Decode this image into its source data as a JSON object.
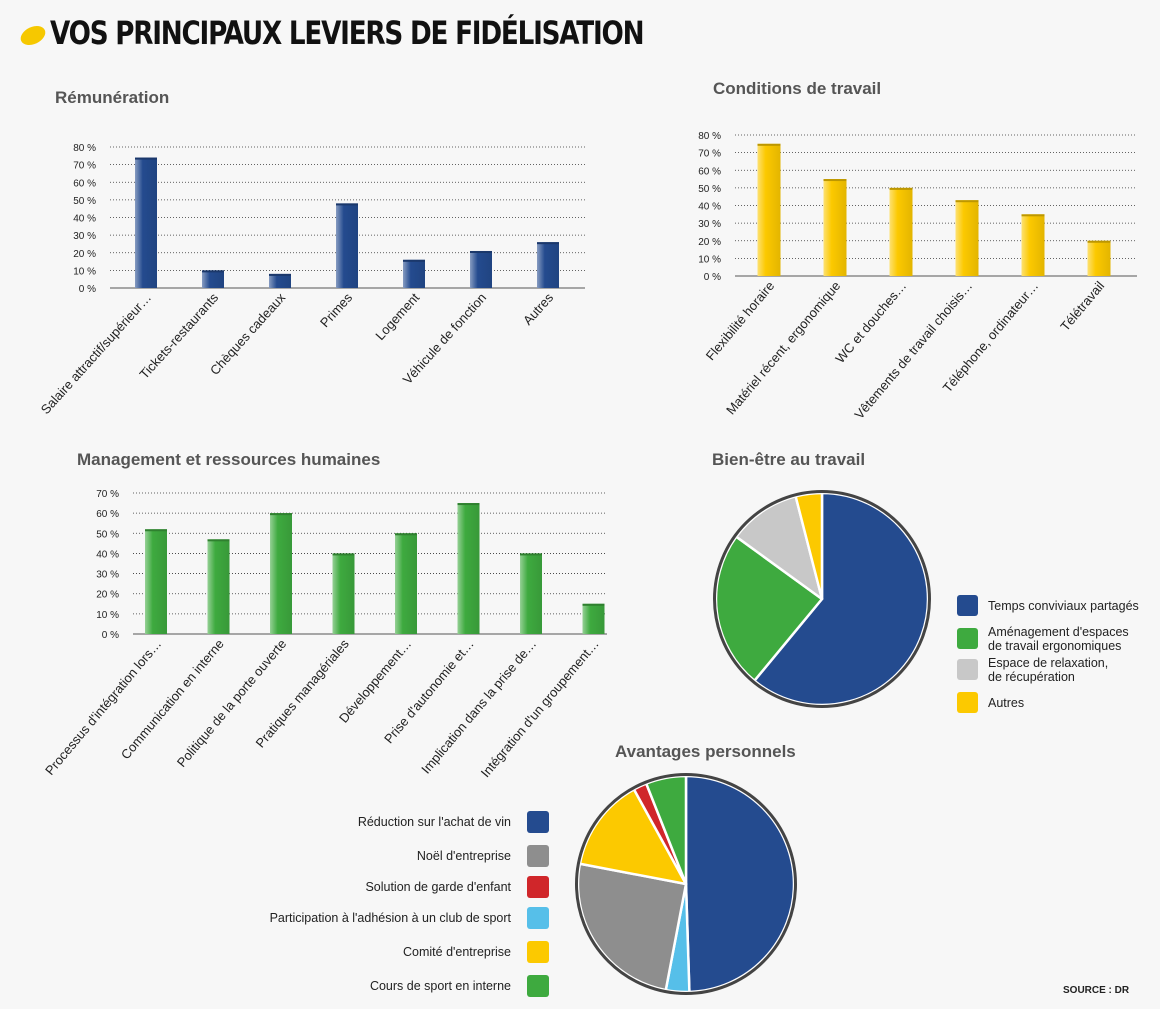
{
  "page": {
    "title": "VOS PRINCIPAUX LEVIERS DE FIDÉLISATION",
    "source": "SOURCE : DR"
  },
  "colors": {
    "blue": "#244b8f",
    "yellow": "#fcc900",
    "green": "#3eaa3f",
    "grey": "#c8c8c8",
    "dark_grey": "#8e8e8e",
    "red": "#d0262a",
    "light_blue": "#56bfe9"
  },
  "chart_data": [
    {
      "id": "remuneration",
      "type": "bar",
      "title": "Rémunération",
      "color": "#244b8f",
      "ylim": [
        0,
        80
      ],
      "yticks": [
        "0 %",
        "10 %",
        "20 %",
        "30 %",
        "40 %",
        "50 %",
        "60 %",
        "70 %",
        "80 %"
      ],
      "grid": true,
      "categories": [
        "Salaire attractif/supérieur…",
        "Tickets-restaurants",
        "Chèques cadeaux",
        "Primes",
        "Logement",
        "Véhicule de fonction",
        "Autres"
      ],
      "values": [
        74,
        10,
        8,
        48,
        16,
        21,
        26
      ]
    },
    {
      "id": "conditions",
      "type": "bar",
      "title": "Conditions de travail",
      "color": "#fcc900",
      "ylim": [
        0,
        80
      ],
      "yticks": [
        "0 %",
        "10 %",
        "20 %",
        "30 %",
        "40 %",
        "50 %",
        "60 %",
        "70 %",
        "80 %"
      ],
      "grid": true,
      "categories": [
        "Flexibilité horaire",
        "Matériel récent, ergonomique",
        "WC et douches…",
        "Vêtements de travail choisis…",
        "Téléphone, ordinateur…",
        "Télétravail"
      ],
      "values": [
        75,
        55,
        50,
        43,
        35,
        20
      ]
    },
    {
      "id": "management",
      "type": "bar",
      "title": "Management et ressources humaines",
      "color": "#3eaa3f",
      "ylim": [
        0,
        70
      ],
      "yticks": [
        "0 %",
        "10 %",
        "20 %",
        "30 %",
        "40 %",
        "50 %",
        "60 %",
        "70 %"
      ],
      "grid": true,
      "categories": [
        "Processus d'intégration lors…",
        "Communication en interne",
        "Politique de la porte ouverte",
        "Pratiques managériales",
        "Développement…",
        "Prise d'autonomie et…",
        "Implication dans la prise de…",
        "Intégration d'un groupement…"
      ],
      "values": [
        52,
        47,
        60,
        40,
        50,
        65,
        40,
        15
      ]
    },
    {
      "id": "bienetre",
      "type": "pie",
      "title": "Bien-être au travail",
      "legend_position": "right",
      "slices": [
        {
          "label": "Temps conviviaux partagés",
          "value": 61,
          "color": "#244b8f"
        },
        {
          "label": "Aménagement d'espaces de travail ergonomiques",
          "value": 24,
          "color": "#3eaa3f"
        },
        {
          "label": "Espace de relaxation, de récupération",
          "value": 11,
          "color": "#c8c8c8"
        },
        {
          "label": "Autres",
          "value": 4,
          "color": "#fcc900"
        }
      ]
    },
    {
      "id": "avantages",
      "type": "pie",
      "title": "Avantages personnels",
      "legend_position": "left",
      "slices": [
        {
          "label": "Réduction sur l'achat de vin",
          "value": 49.5,
          "color": "#244b8f"
        },
        {
          "label": "Participation à l'adhésion à un club de sport",
          "value": 3.5,
          "color": "#56bfe9"
        },
        {
          "label": "Noël d'entreprise",
          "value": 25,
          "color": "#8e8e8e"
        },
        {
          "label": "Comité d'entreprise",
          "value": 14,
          "color": "#fcc900"
        },
        {
          "label": "Solution de garde d'enfant",
          "value": 2,
          "color": "#d0262a"
        },
        {
          "label": "Cours de sport en interne",
          "value": 6,
          "color": "#3eaa3f"
        }
      ],
      "legend_order": [
        "Réduction sur l'achat de vin",
        "Noël d'entreprise",
        "Solution de garde d'enfant",
        "Participation à l'adhésion à un club de sport",
        "Comité d'entreprise",
        "Cours de sport en interne"
      ]
    }
  ]
}
